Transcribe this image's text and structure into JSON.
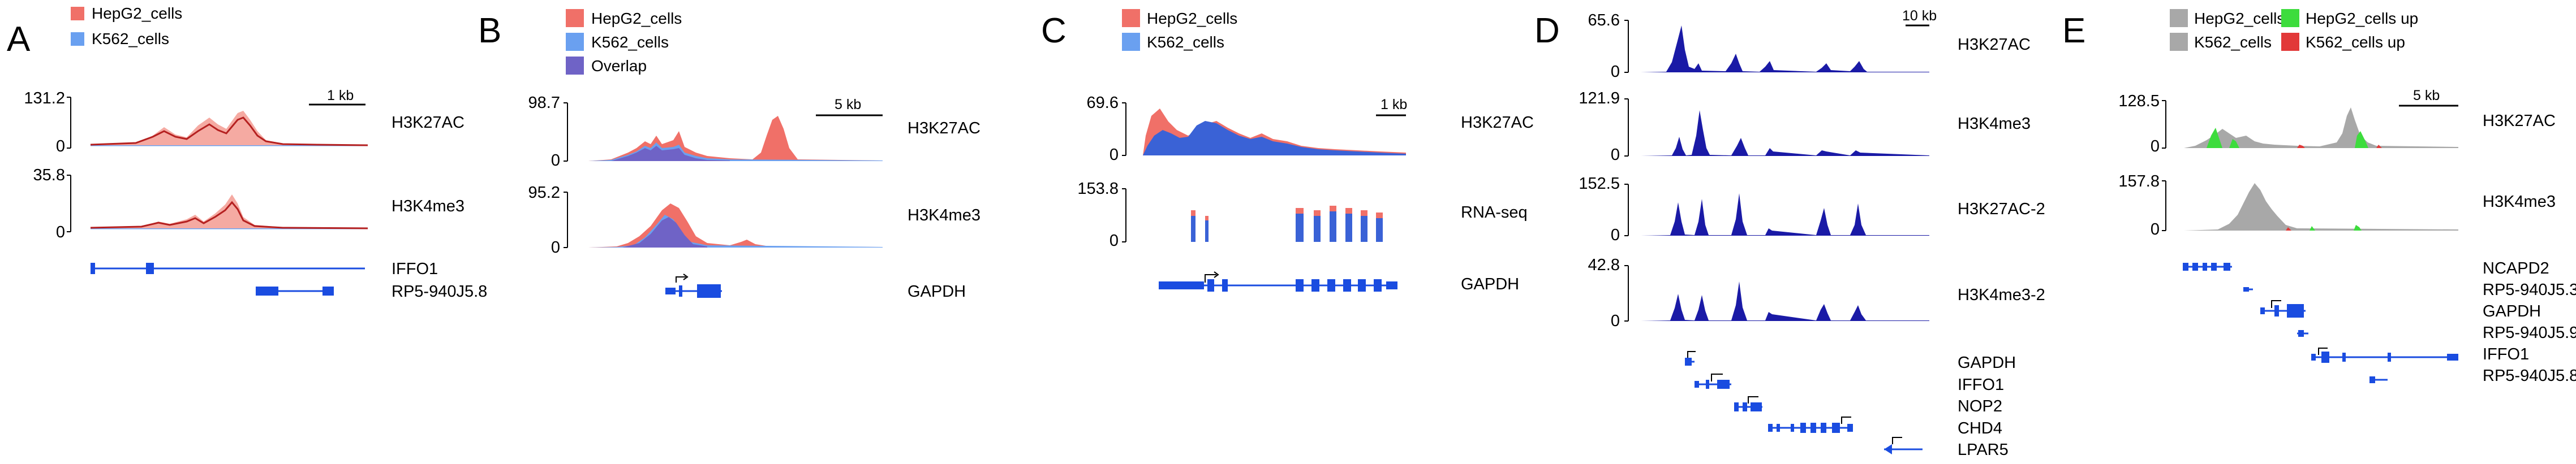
{
  "figure": {
    "colors": {
      "hepg2": "#f07068",
      "k562": "#6aa0f0",
      "overlap": "#6f63c6",
      "signal_dark": "#1a1aa6",
      "gene": "#1a4ce0",
      "grey": "#a8a8a8",
      "up_green": "#3ddc3d",
      "up_red": "#e23838",
      "line_red": "#b52020",
      "line_blue": "#2f67d8",
      "axis": "#000000"
    },
    "panels": [
      {
        "letter": "A",
        "legend": [
          "HepG2_cells",
          "K562_cells"
        ],
        "scale_label": "1 kb",
        "tracks": [
          {
            "label": "H3K27AC",
            "ymax": "131.2",
            "ymin": "0"
          },
          {
            "label": "H3K4me3",
            "ymax": "35.8",
            "ymin": "0"
          }
        ],
        "genes": [
          "IFFO1",
          "RP5-940J5.8"
        ]
      },
      {
        "letter": "B",
        "legend": [
          "HepG2_cells",
          "K562_cells",
          "Overlap"
        ],
        "scale_label": "5 kb",
        "tracks": [
          {
            "label": "H3K27AC",
            "ymax": "98.7",
            "ymin": "0"
          },
          {
            "label": "H3K4me3",
            "ymax": "95.2",
            "ymin": "0"
          }
        ],
        "genes": [
          "GAPDH"
        ]
      },
      {
        "letter": "C",
        "legend": [
          "HepG2_cells",
          "K562_cells"
        ],
        "scale_label": "1 kb",
        "tracks": [
          {
            "label": "H3K27AC",
            "ymax": "69.6",
            "ymin": "0"
          },
          {
            "label": "RNA-seq",
            "ymax": "153.8",
            "ymin": "0"
          }
        ],
        "genes": [
          "GAPDH"
        ]
      },
      {
        "letter": "D",
        "legend": [],
        "scale_label": "10 kb",
        "tracks": [
          {
            "label": "H3K27AC",
            "ymax": "65.6",
            "ymin": "0"
          },
          {
            "label": "H3K4me3",
            "ymax": "121.9",
            "ymin": "0"
          },
          {
            "label": "H3K27AC-2",
            "ymax": "152.5",
            "ymin": "0"
          },
          {
            "label": "H3K4me3-2",
            "ymax": "42.8",
            "ymin": "0"
          }
        ],
        "genes": [
          "GAPDH",
          "IFFO1",
          "NOP2",
          "CHD4",
          "LPAR5"
        ]
      },
      {
        "letter": "E",
        "legend": [
          "HepG2_cells",
          "HepG2_cells up",
          "K562_cells",
          "K562_cells up"
        ],
        "scale_label": "5 kb",
        "tracks": [
          {
            "label": "H3K27AC",
            "ymax": "128.5",
            "ymin": "0"
          },
          {
            "label": "H3K4me3",
            "ymax": "157.8",
            "ymin": "0"
          }
        ],
        "genes": [
          "NCAPD2",
          "RP5-940J5.3",
          "GAPDH",
          "RP5-940J5.9",
          "IFFO1",
          "RP5-940J5.8"
        ]
      }
    ]
  },
  "chart_data": [
    {
      "type": "area",
      "panel": "A",
      "series": [
        {
          "name": "HepG2_cells"
        },
        {
          "name": "K562_cells"
        }
      ],
      "tracks": [
        {
          "label": "H3K27AC",
          "ylim": [
            0,
            131.2
          ],
          "peaks": {
            "HepG2_cells": [
              [
                0.22,
                40,
                0.05
              ],
              [
                0.42,
                68,
                0.04
              ],
              [
                0.55,
                85,
                0.035
              ]
            ],
            "K562_cells": [
              [
                0.5,
                6,
                0.3
              ]
            ]
          }
        },
        {
          "label": "H3K4me3",
          "ylim": [
            0,
            35.8
          ],
          "peaks": {
            "HepG2_cells": [
              [
                0.3,
                8,
                0.08
              ],
              [
                0.5,
                15,
                0.04
              ],
              [
                0.55,
                25,
                0.02
              ]
            ],
            "K562_cells": [
              [
                0.5,
                2,
                0.3
              ]
            ]
          }
        }
      ]
    },
    {
      "type": "area",
      "panel": "B",
      "series": [
        {
          "name": "HepG2_cells"
        },
        {
          "name": "K562_cells"
        },
        {
          "name": "Overlap"
        }
      ],
      "tracks": [
        {
          "label": "H3K27AC",
          "ylim": [
            0,
            98.7
          ],
          "peaks": {
            "HepG2_cells": [
              [
                0.33,
                55,
                0.06
              ],
              [
                0.5,
                40,
                0.05
              ],
              [
                0.88,
                88,
                0.03
              ]
            ],
            "K562_cells": [
              [
                0.33,
                42,
                0.05
              ],
              [
                0.55,
                30,
                0.04
              ]
            ]
          }
        },
        {
          "label": "H3K4me3",
          "ylim": [
            0,
            95.2
          ],
          "peaks": {
            "HepG2_cells": [
              [
                0.47,
                90,
                0.05
              ]
            ],
            "K562_cells": [
              [
                0.45,
                70,
                0.04
              ]
            ]
          }
        }
      ]
    },
    {
      "type": "area",
      "panel": "C",
      "series": [
        {
          "name": "HepG2_cells"
        },
        {
          "name": "K562_cells"
        }
      ],
      "tracks": [
        {
          "label": "H3K27AC",
          "ylim": [
            0,
            69.6
          ],
          "peaks": {
            "HepG2_cells": [
              [
                0.08,
                62,
                0.04
              ],
              [
                0.3,
                40,
                0.12
              ],
              [
                0.55,
                30,
                0.1
              ]
            ],
            "K562_cells": [
              [
                0.15,
                45,
                0.06
              ],
              [
                0.4,
                38,
                0.12
              ],
              [
                0.62,
                25,
                0.08
              ]
            ]
          }
        },
        {
          "label": "RNA-seq",
          "ylim": [
            0,
            153.8
          ],
          "blocks": [
            [
              0.12,
              0.02,
              90
            ],
            [
              0.17,
              0.02,
              60
            ],
            [
              0.45,
              0.04,
              90
            ],
            [
              0.52,
              0.03,
              80
            ],
            [
              0.59,
              0.03,
              95
            ],
            [
              0.65,
              0.03,
              90
            ],
            [
              0.71,
              0.03,
              85
            ],
            [
              0.77,
              0.03,
              80
            ]
          ]
        }
      ]
    },
    {
      "type": "bar",
      "panel": "D",
      "tracks": [
        {
          "label": "H3K27AC",
          "ylim": [
            0,
            65.6
          ],
          "peaks": [
            [
              0.1,
              60
            ],
            [
              0.25,
              30
            ],
            [
              0.4,
              22
            ],
            [
              0.55,
              15
            ],
            [
              0.75,
              12
            ],
            [
              0.88,
              18
            ]
          ]
        },
        {
          "label": "H3K4me3",
          "ylim": [
            0,
            121.9
          ],
          "peaks": [
            [
              0.1,
              40
            ],
            [
              0.22,
              110
            ],
            [
              0.4,
              50
            ],
            [
              0.55,
              20
            ],
            [
              0.75,
              15
            ],
            [
              0.88,
              12
            ]
          ]
        },
        {
          "label": "H3K27AC-2",
          "ylim": [
            0,
            152.5
          ],
          "peaks": [
            [
              0.1,
              100
            ],
            [
              0.25,
              120
            ],
            [
              0.4,
              130
            ],
            [
              0.55,
              40
            ],
            [
              0.75,
              60
            ],
            [
              0.88,
              80
            ]
          ]
        },
        {
          "label": "H3K4me3-2",
          "ylim": [
            0,
            42.8
          ],
          "peaks": [
            [
              0.1,
              30
            ],
            [
              0.25,
              28
            ],
            [
              0.4,
              38
            ],
            [
              0.55,
              20
            ],
            [
              0.75,
              18
            ],
            [
              0.88,
              12
            ]
          ]
        }
      ]
    },
    {
      "type": "area",
      "panel": "E",
      "series": [
        {
          "name": "HepG2_cells"
        },
        {
          "name": "K562_cells"
        },
        {
          "name": "HepG2_cells up"
        },
        {
          "name": "K562_cells up"
        }
      ],
      "tracks": [
        {
          "label": "H3K27AC",
          "ylim": [
            0,
            128.5
          ],
          "peaks": {
            "grey": [
              [
                0.25,
                50,
                0.08
              ],
              [
                0.45,
                20,
                0.1
              ],
              [
                0.82,
                120,
                0.03
              ]
            ],
            "green": [
              [
                0.22,
                30,
                0.03
              ],
              [
                0.84,
                40,
                0.02
              ]
            ],
            "red": [
              [
                0.65,
                5,
                0.05
              ]
            ]
          }
        },
        {
          "label": "H3K4me3",
          "ylim": [
            0,
            157.8
          ],
          "peaks": {
            "grey": [
              [
                0.42,
                140,
                0.05
              ],
              [
                0.5,
                60,
                0.05
              ]
            ],
            "green": [
              [
                0.85,
                10,
                0.02
              ]
            ],
            "red": [
              [
                0.65,
                4,
                0.04
              ]
            ]
          }
        }
      ]
    }
  ]
}
